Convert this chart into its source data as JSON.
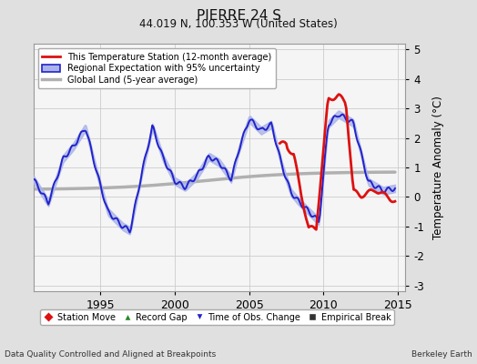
{
  "title": "PIERRE 24 S",
  "subtitle": "44.019 N, 100.353 W (United States)",
  "ylabel": "Temperature Anomaly (°C)",
  "xlabel_left": "Data Quality Controlled and Aligned at Breakpoints",
  "xlabel_right": "Berkeley Earth",
  "xlim": [
    1990.5,
    2015.5
  ],
  "ylim": [
    -3.2,
    5.2
  ],
  "yticks": [
    -3,
    -2,
    -1,
    0,
    1,
    2,
    3,
    4,
    5
  ],
  "xticks": [
    1995,
    2000,
    2005,
    2010,
    2015
  ],
  "fig_bg": "#e0e0e0",
  "plot_bg": "#f5f5f5",
  "grid_color": "#d0d0d0"
}
